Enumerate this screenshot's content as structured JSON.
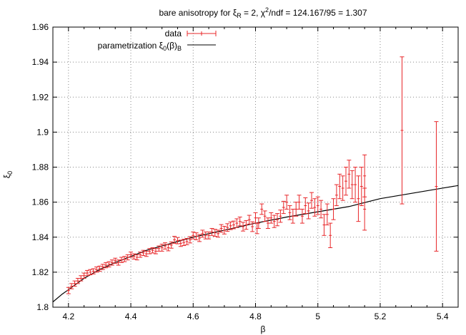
{
  "chart_data": {
    "type": "scatter",
    "title": "bare anisotropy for  ξR = 2,      χ2/ndf = 124.167/95 = 1.307",
    "title_parts": {
      "prefix": "bare anisotropy for  ξ",
      "sub": "R",
      "mid": " = 2,      χ",
      "sup": "2",
      "suffix": "/ndf = 124.167/95 = 1.307"
    },
    "xlabel": "β",
    "ylabel": "ξ0",
    "ylabel_parts": {
      "base": "ξ",
      "sub": "0"
    },
    "xlim": [
      4.15,
      5.45
    ],
    "ylim": [
      1.8,
      1.96
    ],
    "xticks": [
      4.2,
      4.4,
      4.6,
      4.8,
      5.0,
      5.2,
      5.4
    ],
    "xtick_labels": [
      "4.2",
      "4.4",
      "4.6",
      "4.8",
      "5",
      "5.2",
      "5.4"
    ],
    "yticks": [
      1.8,
      1.82,
      1.84,
      1.86,
      1.88,
      1.9,
      1.92,
      1.94,
      1.96
    ],
    "ytick_labels": [
      "1.8",
      "1.82",
      "1.84",
      "1.86",
      "1.88",
      "1.9",
      "1.92",
      "1.94",
      "1.96"
    ],
    "grid": true,
    "legend_placement": "top-left",
    "colors": {
      "data": "#e8272a",
      "fit": "#000000",
      "grid": "#888888"
    },
    "series": [
      {
        "name": "data",
        "style": "errorbars",
        "points": [
          [
            4.2,
            1.8095,
            0.0018
          ],
          [
            4.21,
            1.812,
            0.0015
          ],
          [
            4.22,
            1.8135,
            0.0015
          ],
          [
            4.23,
            1.815,
            0.0015
          ],
          [
            4.24,
            1.8165,
            0.0015
          ],
          [
            4.25,
            1.818,
            0.0015
          ],
          [
            4.26,
            1.8195,
            0.0015
          ],
          [
            4.27,
            1.82,
            0.0015
          ],
          [
            4.28,
            1.8205,
            0.0015
          ],
          [
            4.29,
            1.8215,
            0.0015
          ],
          [
            4.3,
            1.822,
            0.0015
          ],
          [
            4.31,
            1.823,
            0.0015
          ],
          [
            4.32,
            1.824,
            0.0015
          ],
          [
            4.33,
            1.8245,
            0.0015
          ],
          [
            4.34,
            1.8255,
            0.0015
          ],
          [
            4.35,
            1.8265,
            0.0015
          ],
          [
            4.36,
            1.8255,
            0.0015
          ],
          [
            4.37,
            1.827,
            0.0015
          ],
          [
            4.38,
            1.8275,
            0.0015
          ],
          [
            4.39,
            1.8285,
            0.0015
          ],
          [
            4.4,
            1.83,
            0.0015
          ],
          [
            4.41,
            1.829,
            0.0015
          ],
          [
            4.42,
            1.8285,
            0.0015
          ],
          [
            4.43,
            1.83,
            0.0015
          ],
          [
            4.44,
            1.831,
            0.0015
          ],
          [
            4.45,
            1.8305,
            0.0015
          ],
          [
            4.46,
            1.832,
            0.0015
          ],
          [
            4.47,
            1.8325,
            0.0015
          ],
          [
            4.48,
            1.832,
            0.0015
          ],
          [
            4.49,
            1.8335,
            0.0015
          ],
          [
            4.5,
            1.834,
            0.002
          ],
          [
            4.51,
            1.835,
            0.0018
          ],
          [
            4.52,
            1.834,
            0.0018
          ],
          [
            4.53,
            1.8355,
            0.0018
          ],
          [
            4.54,
            1.8385,
            0.002
          ],
          [
            4.55,
            1.838,
            0.0018
          ],
          [
            4.56,
            1.8365,
            0.0018
          ],
          [
            4.57,
            1.837,
            0.0018
          ],
          [
            4.58,
            1.8375,
            0.0018
          ],
          [
            4.59,
            1.8385,
            0.0018
          ],
          [
            4.6,
            1.841,
            0.002
          ],
          [
            4.61,
            1.8405,
            0.002
          ],
          [
            4.62,
            1.8395,
            0.002
          ],
          [
            4.63,
            1.842,
            0.002
          ],
          [
            4.64,
            1.841,
            0.002
          ],
          [
            4.65,
            1.841,
            0.002
          ],
          [
            4.66,
            1.843,
            0.002
          ],
          [
            4.67,
            1.8425,
            0.002
          ],
          [
            4.68,
            1.842,
            0.002
          ],
          [
            4.69,
            1.845,
            0.0022
          ],
          [
            4.7,
            1.844,
            0.0022
          ],
          [
            4.71,
            1.8455,
            0.0022
          ],
          [
            4.72,
            1.8465,
            0.0022
          ],
          [
            4.73,
            1.847,
            0.0022
          ],
          [
            4.74,
            1.848,
            0.0025
          ],
          [
            4.75,
            1.849,
            0.0025
          ],
          [
            4.76,
            1.846,
            0.0025
          ],
          [
            4.77,
            1.847,
            0.0025
          ],
          [
            4.78,
            1.85,
            0.0025
          ],
          [
            4.79,
            1.846,
            0.0028
          ],
          [
            4.8,
            1.851,
            0.003
          ],
          [
            4.805,
            1.845,
            0.003
          ],
          [
            4.81,
            1.848,
            0.003
          ],
          [
            4.82,
            1.856,
            0.003
          ],
          [
            4.83,
            1.852,
            0.003
          ],
          [
            4.84,
            1.848,
            0.003
          ],
          [
            4.85,
            1.851,
            0.003
          ],
          [
            4.86,
            1.849,
            0.0035
          ],
          [
            4.87,
            1.85,
            0.0035
          ],
          [
            4.88,
            1.852,
            0.0035
          ],
          [
            4.89,
            1.857,
            0.0035
          ],
          [
            4.9,
            1.86,
            0.004
          ],
          [
            4.91,
            1.854,
            0.004
          ],
          [
            4.92,
            1.852,
            0.004
          ],
          [
            4.93,
            1.856,
            0.004
          ],
          [
            4.94,
            1.86,
            0.004
          ],
          [
            4.95,
            1.852,
            0.004
          ],
          [
            4.96,
            1.858,
            0.0045
          ],
          [
            4.97,
            1.855,
            0.0045
          ],
          [
            4.98,
            1.861,
            0.0045
          ],
          [
            4.99,
            1.857,
            0.005
          ],
          [
            5.0,
            1.858,
            0.005
          ],
          [
            5.01,
            1.856,
            0.005
          ],
          [
            5.02,
            1.847,
            0.006
          ],
          [
            5.03,
            1.853,
            0.006
          ],
          [
            5.04,
            1.841,
            0.007
          ],
          [
            5.05,
            1.856,
            0.006
          ],
          [
            5.06,
            1.864,
            0.006
          ],
          [
            5.07,
            1.869,
            0.007
          ],
          [
            5.08,
            1.868,
            0.007
          ],
          [
            5.09,
            1.872,
            0.008
          ],
          [
            5.1,
            1.876,
            0.008
          ],
          [
            5.11,
            1.87,
            0.008
          ],
          [
            5.12,
            1.87,
            0.01
          ],
          [
            5.13,
            1.862,
            0.013
          ],
          [
            5.14,
            1.869,
            0.011
          ],
          [
            5.15,
            1.875,
            0.012
          ],
          [
            5.15,
            1.856,
            0.012
          ],
          [
            5.27,
            1.901,
            0.042
          ],
          [
            5.38,
            1.869,
            0.037
          ]
        ]
      },
      {
        "name": "parametrization",
        "legend_label_parts": {
          "base": "parametrization  ξ",
          "sub": "0",
          "mid": "(β)",
          "sub2": "B"
        },
        "style": "line",
        "x": [
          4.15,
          4.18,
          4.2,
          4.25,
          4.3,
          4.35,
          4.4,
          4.45,
          4.5,
          4.55,
          4.6,
          4.7,
          4.8,
          4.9,
          5.0,
          5.1,
          5.2,
          5.3,
          5.4,
          5.45
        ],
        "y": [
          1.803,
          1.8075,
          1.81,
          1.8165,
          1.8215,
          1.8255,
          1.829,
          1.8325,
          1.835,
          1.8375,
          1.84,
          1.844,
          1.848,
          1.8515,
          1.8545,
          1.8575,
          1.862,
          1.865,
          1.868,
          1.8695
        ]
      }
    ]
  }
}
